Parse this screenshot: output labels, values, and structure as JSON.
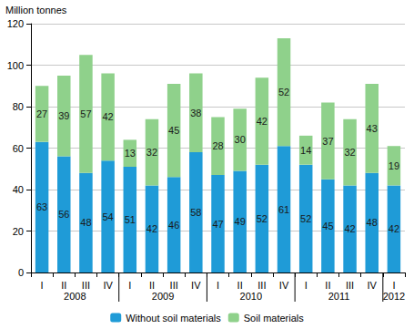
{
  "chart_data": {
    "type": "bar",
    "y_label": "Million tonnes",
    "categories": [
      "I",
      "II",
      "III",
      "IV",
      "I",
      "II",
      "III",
      "IV",
      "I",
      "II",
      "III",
      "IV",
      "I",
      "II",
      "III",
      "IV",
      "I"
    ],
    "groups": [
      {
        "label": "2008",
        "count": 4
      },
      {
        "label": "2009",
        "count": 4
      },
      {
        "label": "2010",
        "count": 4
      },
      {
        "label": "2011",
        "count": 4
      },
      {
        "label": "2012",
        "count": 1
      }
    ],
    "series": [
      {
        "name": "Without soil materials",
        "color": "#1f9bd7",
        "values": [
          63,
          56,
          48,
          54,
          51,
          42,
          46,
          58,
          47,
          49,
          52,
          61,
          52,
          45,
          42,
          48,
          42
        ]
      },
      {
        "name": "Soil materials",
        "color": "#8fd18b",
        "values": [
          27,
          39,
          57,
          42,
          13,
          32,
          45,
          38,
          28,
          30,
          42,
          52,
          14,
          37,
          32,
          43,
          19
        ]
      }
    ],
    "ylim": [
      0,
      120
    ],
    "yticks": [
      0,
      20,
      40,
      60,
      80,
      100,
      120
    ],
    "stacked": true,
    "data_labels": true,
    "grid": true,
    "legend": "bottom"
  }
}
